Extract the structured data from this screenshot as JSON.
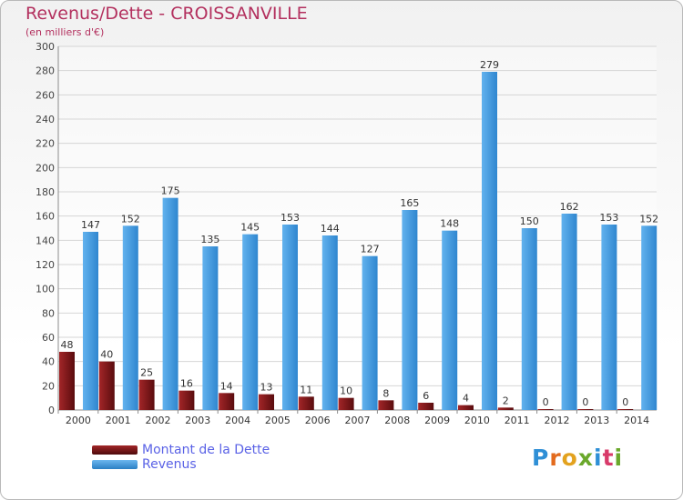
{
  "header": {
    "title": "Revenus/Dette - CROISSANVILLE",
    "subtitle": "(en milliers d'€)"
  },
  "logo": {
    "text": "Proxiti"
  },
  "colors": {
    "dette": "#7a1416",
    "revenus": "#3c97de",
    "title": "#b3305e",
    "legend_text": "#5a62e6"
  },
  "chart_data": {
    "type": "bar",
    "title": "Revenus/Dette - CROISSANVILLE",
    "ylabel": "(en milliers d'€)",
    "xlabel": "",
    "ylim": [
      0,
      300
    ],
    "yticks": [
      0,
      20,
      40,
      60,
      80,
      100,
      120,
      140,
      160,
      180,
      200,
      220,
      240,
      260,
      280,
      300
    ],
    "grid": true,
    "legend_position": "bottom-left",
    "categories": [
      "2000",
      "2001",
      "2002",
      "2003",
      "2004",
      "2005",
      "2006",
      "2007",
      "2008",
      "2009",
      "2010",
      "2011",
      "2012",
      "2013",
      "2014"
    ],
    "series": [
      {
        "name": "Montant de la Dette",
        "color": "#7a1416",
        "values": [
          48,
          40,
          25,
          16,
          14,
          13,
          11,
          10,
          8,
          6,
          4,
          2,
          0,
          0,
          0
        ]
      },
      {
        "name": "Revenus",
        "color": "#3c97de",
        "values": [
          147,
          152,
          175,
          135,
          145,
          153,
          144,
          127,
          165,
          148,
          279,
          150,
          162,
          153,
          152
        ]
      }
    ]
  }
}
